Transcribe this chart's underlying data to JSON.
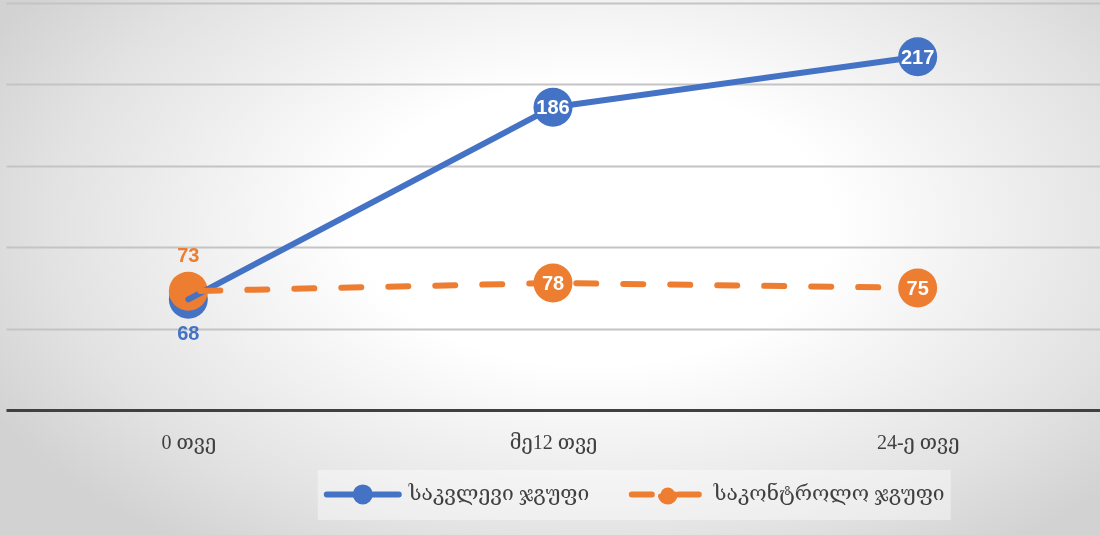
{
  "chart_data": {
    "type": "line",
    "categories": [
      "0 თვე",
      "მე12 თვე",
      "24-ე თვე"
    ],
    "series": [
      {
        "name": "საკვლევი ჯგუფი",
        "color": "#4472c4",
        "line_style": "solid",
        "values": [
          68,
          186,
          217
        ]
      },
      {
        "name": "საკონტროლო ჯგუფი",
        "color": "#ed7d31",
        "line_style": "dashed",
        "values": [
          73,
          78,
          75
        ]
      }
    ],
    "ylim": [
      0,
      250
    ],
    "yticks": [
      {
        "value": 0,
        "label": null
      },
      {
        "value": 50,
        "label": null
      },
      {
        "value": 100,
        "label": null
      },
      {
        "value": 150,
        "label": null
      },
      {
        "value": 200,
        "label": null
      },
      {
        "value": 250,
        "label": null
      }
    ],
    "grid": "y",
    "tick_labels": "x",
    "legend": "bottom",
    "marker": "circle",
    "data_labels": true
  }
}
